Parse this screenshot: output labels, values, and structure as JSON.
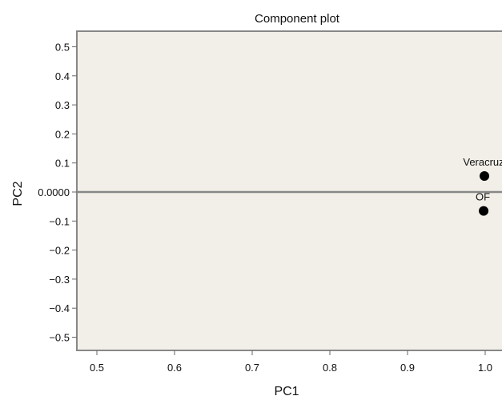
{
  "chart_data": {
    "type": "scatter",
    "title": "Component plot",
    "xlabel": "PC1",
    "ylabel": "PC2",
    "xlim": [
      0.47,
      1.03
    ],
    "ylim": [
      -0.54,
      0.55
    ],
    "xticks": [
      "0.5",
      "0.6",
      "0.7",
      "0.8",
      "0.9",
      "1.0"
    ],
    "yticks": [
      "0.5",
      "0.4",
      "0.3",
      "0.2",
      "0.1",
      "0.0000",
      "−0.1",
      "−0.2",
      "−0.3",
      "−0.4",
      "−0.5"
    ],
    "reference_line_y": 0,
    "grid": false,
    "points": [
      {
        "label": "Veracruz",
        "x": 0.999,
        "y": 0.055
      },
      {
        "label": "OF",
        "x": 0.998,
        "y": -0.065
      }
    ],
    "colors": {
      "plot_background": "#f2efe8",
      "frame": "#888888",
      "point": "#000000",
      "reference_line": "#888888"
    }
  }
}
